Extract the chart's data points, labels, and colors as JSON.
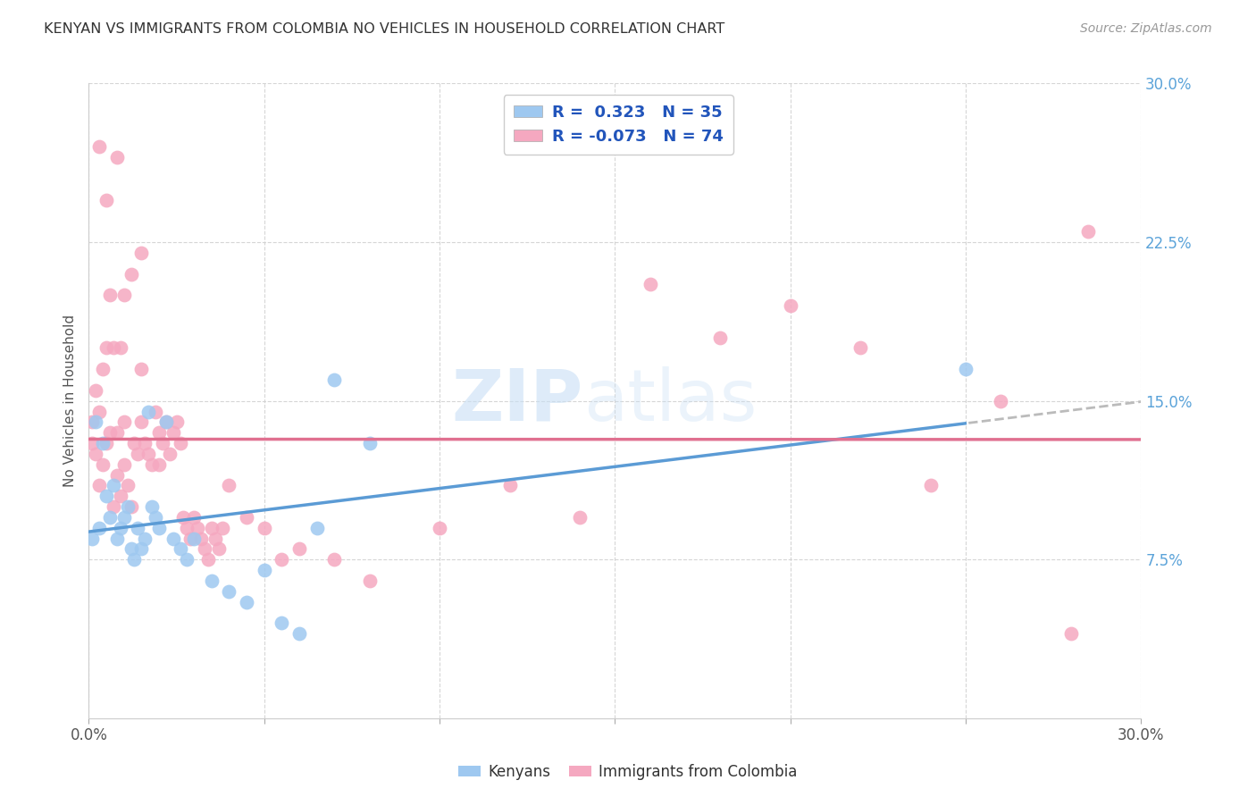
{
  "title": "KENYAN VS IMMIGRANTS FROM COLOMBIA NO VEHICLES IN HOUSEHOLD CORRELATION CHART",
  "source": "Source: ZipAtlas.com",
  "ylabel": "No Vehicles in Household",
  "xlim": [
    0.0,
    0.3
  ],
  "ylim": [
    0.0,
    0.3
  ],
  "ytick_labels": [
    "7.5%",
    "15.0%",
    "22.5%",
    "30.0%"
  ],
  "ytick_vals": [
    0.075,
    0.15,
    0.225,
    0.3
  ],
  "background_color": "#ffffff",
  "watermark_zip": "ZIP",
  "watermark_atlas": "atlas",
  "legend_R1": "R =  0.323",
  "legend_N1": "N = 35",
  "legend_R2": "R = -0.073",
  "legend_N2": "N = 74",
  "kenyan_color": "#9ec8f0",
  "colombia_color": "#f5a8c0",
  "line_blue": "#5b9bd5",
  "line_pink": "#e07090",
  "line_dashed_color": "#bbbbbb",
  "kenyan_x": [
    0.001,
    0.002,
    0.003,
    0.004,
    0.005,
    0.006,
    0.007,
    0.008,
    0.009,
    0.01,
    0.011,
    0.012,
    0.013,
    0.014,
    0.015,
    0.016,
    0.017,
    0.018,
    0.019,
    0.02,
    0.022,
    0.024,
    0.026,
    0.028,
    0.03,
    0.035,
    0.04,
    0.045,
    0.05,
    0.055,
    0.06,
    0.065,
    0.07,
    0.08,
    0.25
  ],
  "kenyan_y": [
    0.085,
    0.14,
    0.09,
    0.13,
    0.105,
    0.095,
    0.11,
    0.085,
    0.09,
    0.095,
    0.1,
    0.08,
    0.075,
    0.09,
    0.08,
    0.085,
    0.145,
    0.1,
    0.095,
    0.09,
    0.14,
    0.085,
    0.08,
    0.075,
    0.085,
    0.065,
    0.06,
    0.055,
    0.07,
    0.045,
    0.04,
    0.09,
    0.16,
    0.13,
    0.165
  ],
  "colombia_x": [
    0.001,
    0.001,
    0.002,
    0.002,
    0.003,
    0.003,
    0.004,
    0.004,
    0.005,
    0.005,
    0.006,
    0.006,
    0.007,
    0.007,
    0.008,
    0.008,
    0.009,
    0.009,
    0.01,
    0.01,
    0.011,
    0.012,
    0.013,
    0.014,
    0.015,
    0.015,
    0.016,
    0.017,
    0.018,
    0.019,
    0.02,
    0.021,
    0.022,
    0.023,
    0.024,
    0.025,
    0.026,
    0.027,
    0.028,
    0.029,
    0.03,
    0.031,
    0.032,
    0.033,
    0.034,
    0.035,
    0.036,
    0.037,
    0.038,
    0.04,
    0.045,
    0.05,
    0.055,
    0.06,
    0.07,
    0.08,
    0.1,
    0.12,
    0.14,
    0.16,
    0.18,
    0.2,
    0.22,
    0.24,
    0.26,
    0.28,
    0.285,
    0.003,
    0.005,
    0.008,
    0.01,
    0.012,
    0.015,
    0.02
  ],
  "colombia_y": [
    0.13,
    0.14,
    0.125,
    0.155,
    0.11,
    0.145,
    0.12,
    0.165,
    0.13,
    0.175,
    0.135,
    0.2,
    0.1,
    0.175,
    0.115,
    0.135,
    0.105,
    0.175,
    0.12,
    0.14,
    0.11,
    0.1,
    0.13,
    0.125,
    0.14,
    0.165,
    0.13,
    0.125,
    0.12,
    0.145,
    0.135,
    0.13,
    0.14,
    0.125,
    0.135,
    0.14,
    0.13,
    0.095,
    0.09,
    0.085,
    0.095,
    0.09,
    0.085,
    0.08,
    0.075,
    0.09,
    0.085,
    0.08,
    0.09,
    0.11,
    0.095,
    0.09,
    0.075,
    0.08,
    0.075,
    0.065,
    0.09,
    0.11,
    0.095,
    0.205,
    0.18,
    0.195,
    0.175,
    0.11,
    0.15,
    0.04,
    0.23,
    0.27,
    0.245,
    0.265,
    0.2,
    0.21,
    0.22,
    0.12
  ]
}
